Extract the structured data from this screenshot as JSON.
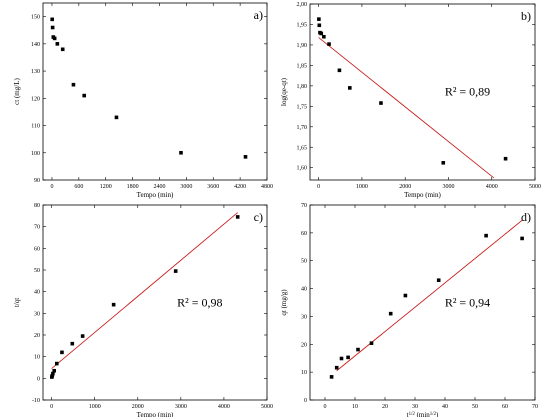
{
  "chart_data": [
    {
      "type": "scatter",
      "panel_label": "a)",
      "xlabel": "Tempo (min)",
      "ylabel": "ct (mg/L)",
      "xlim": [
        -200,
        4800
      ],
      "ylim": [
        90,
        155
      ],
      "xticks": [
        0,
        600,
        1200,
        1800,
        2400,
        3000,
        3600,
        4200,
        4800
      ],
      "yticks": [
        90,
        100,
        110,
        120,
        130,
        140,
        150
      ],
      "points": [
        {
          "x": 5,
          "y": 149
        },
        {
          "x": 15,
          "y": 146
        },
        {
          "x": 30,
          "y": 142.5
        },
        {
          "x": 60,
          "y": 142
        },
        {
          "x": 120,
          "y": 140
        },
        {
          "x": 240,
          "y": 138
        },
        {
          "x": 480,
          "y": 125
        },
        {
          "x": 720,
          "y": 121
        },
        {
          "x": 1440,
          "y": 113
        },
        {
          "x": 2880,
          "y": 100
        },
        {
          "x": 4320,
          "y": 98.5
        }
      ],
      "fit_line": null,
      "r2": ""
    },
    {
      "type": "scatter",
      "panel_label": "b)",
      "xlabel": "Tempo (min)",
      "ylabel": "log(qe-qt)",
      "xlim": [
        -200,
        5000
      ],
      "ylim": [
        1.57,
        2.0
      ],
      "xticks": [
        0,
        1000,
        2000,
        3000,
        4000,
        5000
      ],
      "yticks": [
        1.6,
        1.65,
        1.7,
        1.75,
        1.8,
        1.85,
        1.9,
        1.95,
        2.0
      ],
      "tick_labels": {
        "y": [
          "1,60",
          "1,65",
          "1,70",
          "1,75",
          "1,80",
          "1,85",
          "1,90",
          "1,95",
          "2,00"
        ]
      },
      "points": [
        {
          "x": 5,
          "y": 1.963
        },
        {
          "x": 15,
          "y": 1.948
        },
        {
          "x": 30,
          "y": 1.93
        },
        {
          "x": 60,
          "y": 1.928
        },
        {
          "x": 120,
          "y": 1.92
        },
        {
          "x": 240,
          "y": 1.902
        },
        {
          "x": 480,
          "y": 1.838
        },
        {
          "x": 720,
          "y": 1.795
        },
        {
          "x": 1440,
          "y": 1.758
        },
        {
          "x": 2880,
          "y": 1.612
        },
        {
          "x": 4320,
          "y": 1.622
        }
      ],
      "fit_line": {
        "x": [
          0,
          4050
        ],
        "y": [
          1.918,
          1.575
        ]
      },
      "r2": "R² = 0,89"
    },
    {
      "type": "scatter",
      "panel_label": "c)",
      "xlabel": "Tempo (min)",
      "ylabel": "t/qt",
      "xlim": [
        -200,
        5000
      ],
      "ylim": [
        -10,
        80
      ],
      "xticks": [
        0,
        1000,
        2000,
        3000,
        4000,
        5000
      ],
      "yticks": [
        -10,
        0,
        10,
        20,
        30,
        40,
        50,
        60,
        70,
        80
      ],
      "points": [
        {
          "x": 5,
          "y": 0.6
        },
        {
          "x": 15,
          "y": 1.2
        },
        {
          "x": 30,
          "y": 2.2
        },
        {
          "x": 60,
          "y": 3.5
        },
        {
          "x": 120,
          "y": 6.8
        },
        {
          "x": 240,
          "y": 12.0
        },
        {
          "x": 480,
          "y": 16.0
        },
        {
          "x": 720,
          "y": 19.5
        },
        {
          "x": 1440,
          "y": 34.0
        },
        {
          "x": 2880,
          "y": 49.5
        },
        {
          "x": 4320,
          "y": 74.5
        }
      ],
      "fit_line": {
        "x": [
          0,
          4320
        ],
        "y": [
          4.5,
          76.5
        ]
      },
      "r2": "R² = 0,98"
    },
    {
      "type": "scatter",
      "panel_label": "d)",
      "xlabel": "t^1/2 (min^1/2)",
      "ylabel": "qt (mg/g)",
      "xlim": [
        -5,
        70
      ],
      "ylim": [
        0,
        70
      ],
      "xticks": [
        0,
        10,
        20,
        30,
        40,
        50,
        60,
        70
      ],
      "yticks": [
        0,
        10,
        20,
        30,
        40,
        50,
        60,
        70
      ],
      "points": [
        {
          "x": 2.2,
          "y": 8.3
        },
        {
          "x": 3.9,
          "y": 11.6
        },
        {
          "x": 5.5,
          "y": 14.9
        },
        {
          "x": 7.7,
          "y": 15.3
        },
        {
          "x": 11.0,
          "y": 18.1
        },
        {
          "x": 15.5,
          "y": 20.4
        },
        {
          "x": 21.9,
          "y": 31.0
        },
        {
          "x": 26.8,
          "y": 37.5
        },
        {
          "x": 37.9,
          "y": 43.0
        },
        {
          "x": 53.7,
          "y": 59.0
        },
        {
          "x": 65.7,
          "y": 58.0
        }
      ],
      "fit_line": {
        "x": [
          3.9,
          65.7
        ],
        "y": [
          10.5,
          64.5
        ]
      },
      "r2": "R² = 0,94"
    }
  ]
}
